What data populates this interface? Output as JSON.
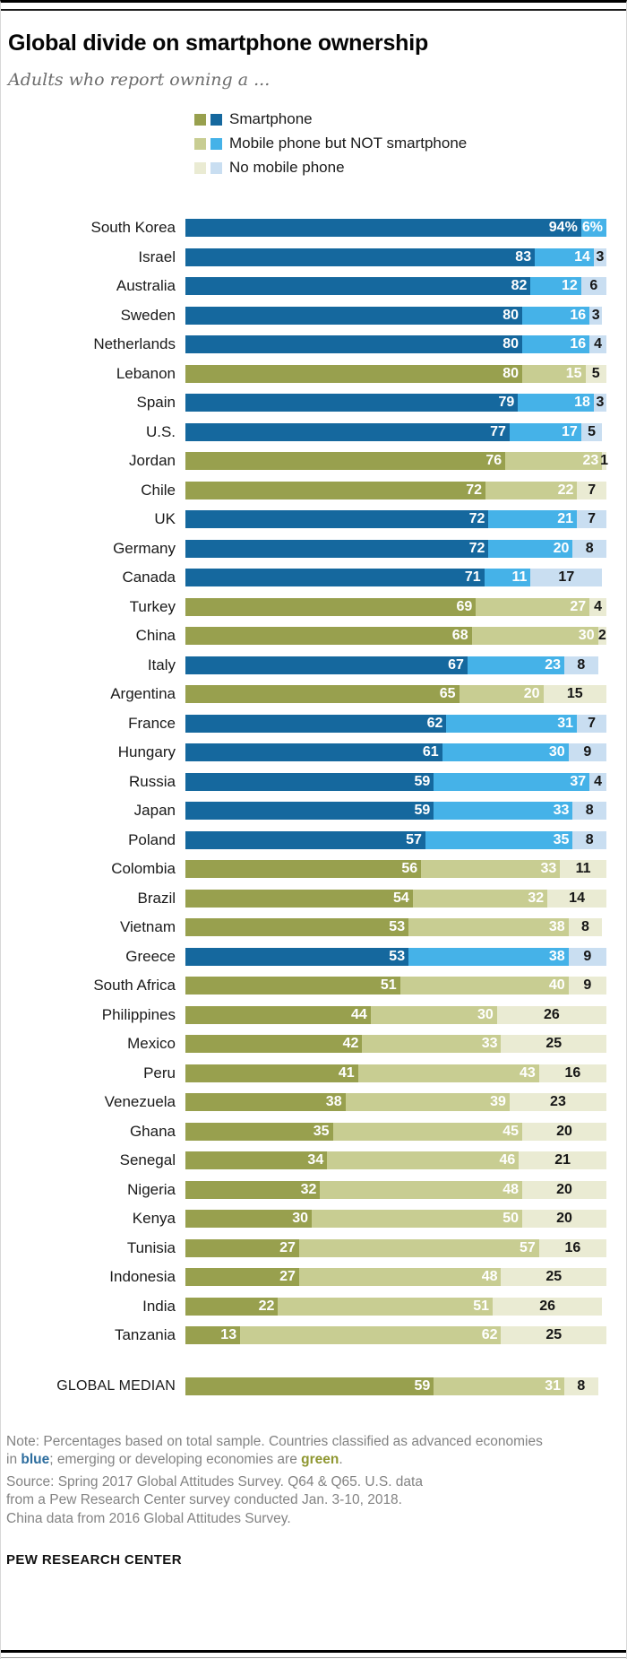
{
  "header": {
    "title": "Global divide on smartphone  ownership",
    "subtitle": "Adults who report owning a ..."
  },
  "colors": {
    "advanced": [
      "#15689e",
      "#45b2e8",
      "#c9def1"
    ],
    "emerging": [
      "#98a04e",
      "#c8cd92",
      "#eaebd3"
    ]
  },
  "chart_data": {
    "type": "bar",
    "stacked": true,
    "orientation": "horizontal",
    "unit": "percent",
    "xlim": [
      0,
      100
    ],
    "series_labels": [
      "Smartphone",
      "Mobile phone but NOT smartphone",
      "No mobile phone"
    ],
    "series_keys": [
      "smartphone",
      "mobile-not-smartphone",
      "no-mobile"
    ],
    "economy_color_note": {
      "advanced": "blue",
      "emerging": "green"
    },
    "rows": [
      {
        "label": "South Korea",
        "economy": "advanced",
        "values": [
          94,
          6,
          null
        ],
        "display": [
          "94%",
          "6%",
          null
        ]
      },
      {
        "label": "Israel",
        "economy": "advanced",
        "values": [
          83,
          14,
          3
        ]
      },
      {
        "label": "Australia",
        "economy": "advanced",
        "values": [
          82,
          12,
          6
        ]
      },
      {
        "label": "Sweden",
        "economy": "advanced",
        "values": [
          80,
          16,
          3
        ]
      },
      {
        "label": "Netherlands",
        "economy": "advanced",
        "values": [
          80,
          16,
          4
        ]
      },
      {
        "label": "Lebanon",
        "economy": "emerging",
        "values": [
          80,
          15,
          5
        ]
      },
      {
        "label": "Spain",
        "economy": "advanced",
        "values": [
          79,
          18,
          3
        ]
      },
      {
        "label": "U.S.",
        "economy": "advanced",
        "values": [
          77,
          17,
          5
        ]
      },
      {
        "label": "Jordan",
        "economy": "emerging",
        "values": [
          76,
          23,
          1
        ]
      },
      {
        "label": "Chile",
        "economy": "emerging",
        "values": [
          72,
          22,
          7
        ]
      },
      {
        "label": "UK",
        "economy": "advanced",
        "values": [
          72,
          21,
          7
        ]
      },
      {
        "label": "Germany",
        "economy": "advanced",
        "values": [
          72,
          20,
          8
        ]
      },
      {
        "label": "Canada",
        "economy": "advanced",
        "values": [
          71,
          11,
          17
        ]
      },
      {
        "label": "Turkey",
        "economy": "emerging",
        "values": [
          69,
          27,
          4
        ]
      },
      {
        "label": "China",
        "economy": "emerging",
        "values": [
          68,
          30,
          2
        ]
      },
      {
        "label": "Italy",
        "economy": "advanced",
        "values": [
          67,
          23,
          8
        ]
      },
      {
        "label": "Argentina",
        "economy": "emerging",
        "values": [
          65,
          20,
          15
        ]
      },
      {
        "label": "France",
        "economy": "advanced",
        "values": [
          62,
          31,
          7
        ]
      },
      {
        "label": "Hungary",
        "economy": "advanced",
        "values": [
          61,
          30,
          9
        ]
      },
      {
        "label": "Russia",
        "economy": "advanced",
        "values": [
          59,
          37,
          4
        ]
      },
      {
        "label": "Japan",
        "economy": "advanced",
        "values": [
          59,
          33,
          8
        ]
      },
      {
        "label": "Poland",
        "economy": "advanced",
        "values": [
          57,
          35,
          8
        ]
      },
      {
        "label": "Colombia",
        "economy": "emerging",
        "values": [
          56,
          33,
          11
        ]
      },
      {
        "label": "Brazil",
        "economy": "emerging",
        "values": [
          54,
          32,
          14
        ]
      },
      {
        "label": "Vietnam",
        "economy": "emerging",
        "values": [
          53,
          38,
          8
        ]
      },
      {
        "label": "Greece",
        "economy": "advanced",
        "values": [
          53,
          38,
          9
        ]
      },
      {
        "label": "South Africa",
        "economy": "emerging",
        "values": [
          51,
          40,
          9
        ]
      },
      {
        "label": "Philippines",
        "economy": "emerging",
        "values": [
          44,
          30,
          26
        ]
      },
      {
        "label": "Mexico",
        "economy": "emerging",
        "values": [
          42,
          33,
          25
        ]
      },
      {
        "label": "Peru",
        "economy": "emerging",
        "values": [
          41,
          43,
          16
        ]
      },
      {
        "label": "Venezuela",
        "economy": "emerging",
        "values": [
          38,
          39,
          23
        ]
      },
      {
        "label": "Ghana",
        "economy": "emerging",
        "values": [
          35,
          45,
          20
        ]
      },
      {
        "label": "Senegal",
        "economy": "emerging",
        "values": [
          34,
          46,
          21
        ]
      },
      {
        "label": "Nigeria",
        "economy": "emerging",
        "values": [
          32,
          48,
          20
        ]
      },
      {
        "label": "Kenya",
        "economy": "emerging",
        "values": [
          30,
          50,
          20
        ]
      },
      {
        "label": "Tunisia",
        "economy": "emerging",
        "values": [
          27,
          57,
          16
        ]
      },
      {
        "label": "Indonesia",
        "economy": "emerging",
        "values": [
          27,
          48,
          25
        ]
      },
      {
        "label": "India",
        "economy": "emerging",
        "values": [
          22,
          51,
          26
        ]
      },
      {
        "label": "Tanzania",
        "economy": "emerging",
        "values": [
          13,
          62,
          25
        ]
      }
    ],
    "global_median": {
      "label": "GLOBAL MEDIAN",
      "economy": "emerging",
      "values": [
        59,
        31,
        8
      ]
    }
  },
  "footer": {
    "note": {
      "prefix": "Note: Percentages based on total sample. Countries classified as advanced economies in ",
      "blue_word": "blue",
      "middle": "; emerging or developing economies are ",
      "green_word": "green",
      "suffix": "."
    },
    "source_lines": [
      "Source: Spring 2017 Global Attitudes Survey. Q64 & Q65. U.S. data",
      "from a Pew Research Center survey conducted Jan. 3-10, 2018.",
      "China data from 2016 Global Attitudes Survey."
    ],
    "brand": "PEW RESEARCH CENTER"
  }
}
